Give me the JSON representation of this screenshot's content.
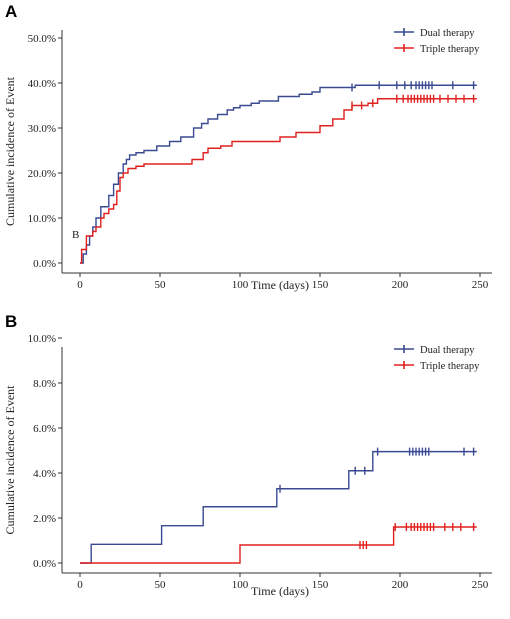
{
  "colors": {
    "dual": "#3a4a92",
    "triple": "#e0201f",
    "axis": "#333333"
  },
  "chart_data": [
    {
      "panel": "A",
      "type": "line",
      "step": true,
      "xlabel": "Time (days)",
      "ylabel": "Cumulative incidence of Event",
      "ylim": [
        0,
        50
      ],
      "xlim": [
        0,
        250
      ],
      "xticks": [
        0,
        50,
        100,
        150,
        200,
        250
      ],
      "yticks": [
        "0.0%",
        "10.0%",
        "20.0%",
        "30.0%",
        "40.0%",
        "50.0%"
      ],
      "yticks_values": [
        0,
        10,
        20,
        30,
        40,
        50
      ],
      "annotation": "B",
      "grid": false,
      "legend_position": "top-right",
      "series": [
        {
          "name": "Dual therapy",
          "color": "#3a4a92",
          "x": [
            0,
            2,
            4,
            6,
            8,
            10,
            13,
            16,
            18,
            21,
            24,
            27,
            29,
            31,
            35,
            40,
            48,
            56,
            63,
            71,
            76,
            80,
            86,
            92,
            96,
            100,
            107,
            112,
            117,
            124,
            137,
            145,
            150,
            172,
            248
          ],
          "y": [
            0,
            2,
            4,
            6,
            8,
            10,
            12.5,
            12.5,
            15,
            17.5,
            20,
            22,
            23,
            24,
            24.5,
            25,
            26,
            27,
            28,
            30,
            31,
            32,
            33,
            34,
            34.5,
            35,
            35.5,
            36,
            36,
            37,
            37.5,
            38,
            39,
            39.5,
            39.5
          ],
          "censored_x": [
            170,
            187,
            198,
            203,
            207,
            210,
            212,
            214,
            216,
            218,
            220,
            233,
            246
          ]
        },
        {
          "name": "Triple therapy",
          "color": "#e0201f",
          "x": [
            0,
            1,
            4,
            8,
            10,
            13,
            15,
            18,
            21,
            23,
            25,
            27,
            30,
            35,
            40,
            60,
            70,
            77,
            80,
            88,
            95,
            102,
            125,
            135,
            150,
            158,
            165,
            170,
            180,
            186,
            248
          ],
          "y": [
            0,
            3,
            6,
            7,
            8,
            10,
            11,
            12,
            13,
            16,
            19,
            20,
            21,
            21.5,
            22,
            22,
            23,
            24.5,
            25.5,
            26,
            27,
            27,
            28,
            29,
            30.5,
            32,
            34,
            35,
            35.5,
            36.5,
            36.5
          ],
          "censored_x": [
            170,
            176,
            183,
            198,
            202,
            205,
            207,
            209,
            211,
            213,
            215,
            217,
            219,
            221,
            225,
            230,
            235,
            240,
            246
          ]
        }
      ]
    },
    {
      "panel": "B",
      "type": "line",
      "step": true,
      "xlabel": "Time (days)",
      "ylabel": "Cumulative incidence of Event",
      "ylim": [
        0,
        10
      ],
      "xlim": [
        0,
        250
      ],
      "xticks": [
        0,
        50,
        100,
        150,
        200,
        250
      ],
      "yticks": [
        "0.0%",
        "2.0%",
        "4.0%",
        "6.0%",
        "8.0%",
        "10.0%"
      ],
      "yticks_values": [
        0,
        2,
        4,
        6,
        8,
        10
      ],
      "grid": false,
      "legend_position": "top-right",
      "series": [
        {
          "name": "Dual therapy",
          "color": "#3a4a92",
          "x": [
            0,
            7,
            51,
            77,
            123,
            168,
            183,
            248
          ],
          "y": [
            0,
            0.83,
            1.66,
            2.5,
            3.3,
            4.1,
            4.95,
            4.95
          ],
          "censored_x": [
            125,
            172,
            178,
            186,
            206,
            208,
            210,
            212,
            214,
            216,
            218,
            240,
            246
          ]
        },
        {
          "name": "Triple therapy",
          "color": "#e0201f",
          "x": [
            0,
            100,
            196,
            248
          ],
          "y": [
            0,
            0.8,
            1.6,
            1.6
          ],
          "censored_x": [
            175,
            177,
            179,
            197,
            204,
            207,
            209,
            211,
            213,
            215,
            217,
            219,
            221,
            228,
            233,
            238,
            246
          ]
        }
      ]
    }
  ],
  "panels": {
    "a_label": "A",
    "b_label": "B"
  }
}
